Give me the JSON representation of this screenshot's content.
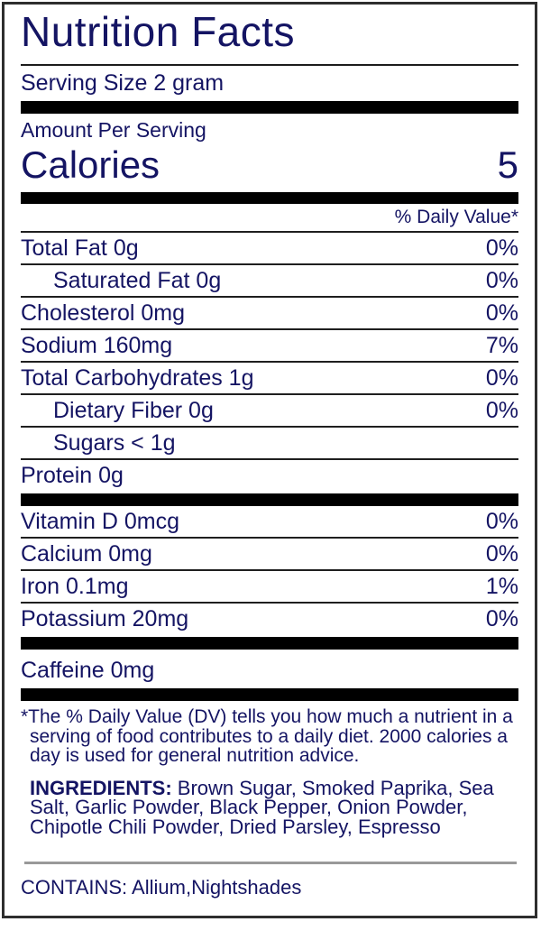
{
  "label": {
    "title": "Nutrition Facts",
    "serving_size": "Serving Size 2 gram",
    "amount_per_serving": "Amount Per Serving",
    "calories_label": "Calories",
    "calories_value": "5",
    "daily_value_header": "% Daily Value*",
    "nutrients": [
      {
        "name": "Total Fat 0g",
        "dv": "0%"
      },
      {
        "name": "Saturated Fat 0g",
        "dv": "0%"
      },
      {
        "name": "Cholesterol 0mg",
        "dv": "0%"
      },
      {
        "name": "Sodium 160mg",
        "dv": "7%"
      },
      {
        "name": "Total Carbohydrates 1g",
        "dv": "0%"
      },
      {
        "name": "Dietary Fiber 0g",
        "dv": "0%"
      },
      {
        "name": "Sugars < 1g",
        "dv": ""
      },
      {
        "name": "Protein 0g",
        "dv": ""
      }
    ],
    "vitamins": [
      {
        "name": "Vitamin D 0mcg",
        "dv": "0%"
      },
      {
        "name": "Calcium 0mg",
        "dv": "0%"
      },
      {
        "name": "Iron 0.1mg",
        "dv": "1%"
      },
      {
        "name": "Potassium 20mg",
        "dv": "0%"
      }
    ],
    "caffeine": "Caffeine 0mg",
    "footnote": "*The % Daily Value (DV) tells you how much a nutrient in a serving of food contributes to a daily diet. 2000 calories a day is used for general nutrition advice.",
    "ingredients_label": "INGREDIENTS:",
    "ingredients_text": " Brown Sugar, Smoked Paprika, Sea Salt, Garlic Powder, Black Pepper, Onion Powder, Chipotle Chili Powder, Dried Parsley, Espresso",
    "contains": "CONTAINS: Allium,Nightshades",
    "colors": {
      "text": "#141463",
      "bar": "#000000",
      "divider_gray": "#999999"
    }
  }
}
